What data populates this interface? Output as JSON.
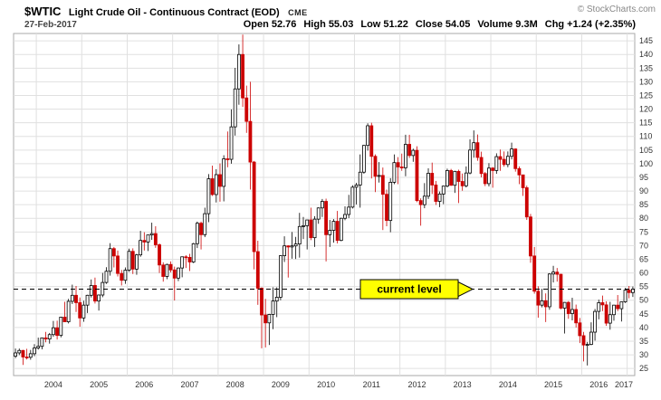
{
  "header": {
    "symbol": "$WTIC",
    "title": "Light Crude Oil - Continuous Contract (EOD)",
    "exchange": "CME",
    "copyright": "© StockCharts.com",
    "date": "27-Feb-2017"
  },
  "quote": {
    "items": [
      {
        "label": "Open",
        "value": "52.76"
      },
      {
        "label": "High",
        "value": "55.03"
      },
      {
        "label": "Low",
        "value": "51.22"
      },
      {
        "label": "Close",
        "value": "54.05"
      },
      {
        "label": "Volume",
        "value": "9.3M"
      },
      {
        "label": "Chg",
        "value": "+1.24 (+2.35%)"
      }
    ]
  },
  "chart_data": {
    "type": "candlestick",
    "interval": "monthly",
    "start_month": "2003-07",
    "title": "$WTIC Light Crude Oil - Continuous Contract (EOD) CME",
    "ylim": [
      22.4,
      147.7
    ],
    "y_ticks": [
      25,
      30,
      35,
      40,
      45,
      50,
      55,
      60,
      65,
      70,
      75,
      80,
      85,
      90,
      95,
      100,
      105,
      110,
      115,
      120,
      125,
      130,
      135,
      140,
      145
    ],
    "x_labels": [
      "2004",
      "2005",
      "2006",
      "2007",
      "2008",
      "2009",
      "2010",
      "2011",
      "2012",
      "2013",
      "2014",
      "2015",
      "2016",
      "2017"
    ],
    "current_level": 54.05,
    "annotation": "current level",
    "grid": true,
    "legend_position": "none",
    "colors": {
      "up_stroke": "#000000",
      "up_fill": "#ffffff",
      "down": "#cc0000",
      "grid": "#e0e0e0",
      "border": "#aaaaaa",
      "axis_text": "#333333",
      "dashed_line": "#000000",
      "annotation_bg": "#ffff00",
      "annotation_border": "#000000"
    },
    "ohlc": [
      [
        29.5,
        32.3,
        28.8,
        30.7
      ],
      [
        30.7,
        32.3,
        29.9,
        31.6
      ],
      [
        31.6,
        31.8,
        26.3,
        29.2
      ],
      [
        29.2,
        32.2,
        28.3,
        29.1
      ],
      [
        29.1,
        31.8,
        28.2,
        30.4
      ],
      [
        30.4,
        33.9,
        29.5,
        32.5
      ],
      [
        32.5,
        36.3,
        31.9,
        33.1
      ],
      [
        33.1,
        36.2,
        32.0,
        36.2
      ],
      [
        36.2,
        38.4,
        34.6,
        35.8
      ],
      [
        35.8,
        38.0,
        34.1,
        37.4
      ],
      [
        37.4,
        42.4,
        36.6,
        39.9
      ],
      [
        39.9,
        42.5,
        35.6,
        37.1
      ],
      [
        37.1,
        43.9,
        36.4,
        43.8
      ],
      [
        43.8,
        49.4,
        42.0,
        42.1
      ],
      [
        42.1,
        50.5,
        41.5,
        49.6
      ],
      [
        49.6,
        55.7,
        48.6,
        51.8
      ],
      [
        51.8,
        55.2,
        45.7,
        49.1
      ],
      [
        49.1,
        51.0,
        40.3,
        43.5
      ],
      [
        43.5,
        49.8,
        42.1,
        48.2
      ],
      [
        48.2,
        52.0,
        45.3,
        51.8
      ],
      [
        51.8,
        57.6,
        51.0,
        55.4
      ],
      [
        55.4,
        58.3,
        48.8,
        49.7
      ],
      [
        49.7,
        52.1,
        46.2,
        51.9
      ],
      [
        51.9,
        60.0,
        51.1,
        56.5
      ],
      [
        56.5,
        62.1,
        56.0,
        60.6
      ],
      [
        60.6,
        70.9,
        59.0,
        68.9
      ],
      [
        68.9,
        69.5,
        62.0,
        66.2
      ],
      [
        66.2,
        68.2,
        58.7,
        59.8
      ],
      [
        59.8,
        61.1,
        55.4,
        57.3
      ],
      [
        57.3,
        62.0,
        56.0,
        61.0
      ],
      [
        61.0,
        68.9,
        60.4,
        67.9
      ],
      [
        67.9,
        69.0,
        59.6,
        61.4
      ],
      [
        61.4,
        67.0,
        59.3,
        66.6
      ],
      [
        66.6,
        75.4,
        65.9,
        71.9
      ],
      [
        71.9,
        74.9,
        68.2,
        71.3
      ],
      [
        71.3,
        74.0,
        68.0,
        73.9
      ],
      [
        73.9,
        78.4,
        72.1,
        74.4
      ],
      [
        74.4,
        77.1,
        69.2,
        70.3
      ],
      [
        70.3,
        70.8,
        60.0,
        62.9
      ],
      [
        62.9,
        63.9,
        56.8,
        58.7
      ],
      [
        58.7,
        63.4,
        57.7,
        63.1
      ],
      [
        63.1,
        64.2,
        60.2,
        61.1
      ],
      [
        61.1,
        62.3,
        49.9,
        58.1
      ],
      [
        58.1,
        62.0,
        57.0,
        61.8
      ],
      [
        61.8,
        66.0,
        58.4,
        65.9
      ],
      [
        65.9,
        66.5,
        61.8,
        65.7
      ],
      [
        65.7,
        67.0,
        60.7,
        64.0
      ],
      [
        64.0,
        71.0,
        63.6,
        70.7
      ],
      [
        70.7,
        78.8,
        69.1,
        78.2
      ],
      [
        78.2,
        78.8,
        68.6,
        74.0
      ],
      [
        74.0,
        83.9,
        73.1,
        81.7
      ],
      [
        81.7,
        96.2,
        78.6,
        94.5
      ],
      [
        94.5,
        99.3,
        88.2,
        88.7
      ],
      [
        88.7,
        98.0,
        85.8,
        96.0
      ],
      [
        96.0,
        100.1,
        86.1,
        91.7
      ],
      [
        91.7,
        103.1,
        86.2,
        101.8
      ],
      [
        101.8,
        111.8,
        98.7,
        101.6
      ],
      [
        101.6,
        119.9,
        100.0,
        113.5
      ],
      [
        113.5,
        135.1,
        110.3,
        127.4
      ],
      [
        127.4,
        143.7,
        121.6,
        140.0
      ],
      [
        140.0,
        147.3,
        120.8,
        124.1
      ],
      [
        124.1,
        128.6,
        111.3,
        115.5
      ],
      [
        115.5,
        130.0,
        90.5,
        100.6
      ],
      [
        100.6,
        101.0,
        61.3,
        67.8
      ],
      [
        67.8,
        71.8,
        48.3,
        54.4
      ],
      [
        54.4,
        54.7,
        32.4,
        44.6
      ],
      [
        44.6,
        50.5,
        32.7,
        41.7
      ],
      [
        41.7,
        45.0,
        33.6,
        44.8
      ],
      [
        44.8,
        54.7,
        39.4,
        49.7
      ],
      [
        49.7,
        54.7,
        43.8,
        51.1
      ],
      [
        51.1,
        66.5,
        50.0,
        66.3
      ],
      [
        66.3,
        73.4,
        64.0,
        69.9
      ],
      [
        69.9,
        70.1,
        58.3,
        69.5
      ],
      [
        69.5,
        75.0,
        65.2,
        69.9
      ],
      [
        69.9,
        73.2,
        65.1,
        70.6
      ],
      [
        70.6,
        82.0,
        65.6,
        77.0
      ],
      [
        77.0,
        80.5,
        72.4,
        77.3
      ],
      [
        77.3,
        79.0,
        68.6,
        79.4
      ],
      [
        79.4,
        83.9,
        72.0,
        72.9
      ],
      [
        72.9,
        80.8,
        69.5,
        79.7
      ],
      [
        79.7,
        84.0,
        78.0,
        83.8
      ],
      [
        83.8,
        87.1,
        80.5,
        86.2
      ],
      [
        86.2,
        87.2,
        64.2,
        74.0
      ],
      [
        74.0,
        79.4,
        69.5,
        75.6
      ],
      [
        75.6,
        79.7,
        71.1,
        78.9
      ],
      [
        78.9,
        82.7,
        70.8,
        71.9
      ],
      [
        71.9,
        80.2,
        71.6,
        80.0
      ],
      [
        80.0,
        84.4,
        79.3,
        81.4
      ],
      [
        81.4,
        88.6,
        80.1,
        84.1
      ],
      [
        84.1,
        92.1,
        83.6,
        91.4
      ],
      [
        91.4,
        93.0,
        85.1,
        92.2
      ],
      [
        92.2,
        103.4,
        83.9,
        96.9
      ],
      [
        96.9,
        106.9,
        96.3,
        106.7
      ],
      [
        106.7,
        114.8,
        104.8,
        113.9
      ],
      [
        113.9,
        115.0,
        94.6,
        102.7
      ],
      [
        102.7,
        103.4,
        89.6,
        95.4
      ],
      [
        95.4,
        100.6,
        93.1,
        95.7
      ],
      [
        95.7,
        98.6,
        75.7,
        88.8
      ],
      [
        88.8,
        90.5,
        77.1,
        79.2
      ],
      [
        79.2,
        94.7,
        74.9,
        93.2
      ],
      [
        93.2,
        103.4,
        92.5,
        100.4
      ],
      [
        100.4,
        102.4,
        92.5,
        98.8
      ],
      [
        98.8,
        103.7,
        97.4,
        98.5
      ],
      [
        98.5,
        110.6,
        95.4,
        107.1
      ],
      [
        107.1,
        110.6,
        102.1,
        103.0
      ],
      [
        103.0,
        105.5,
        100.7,
        104.9
      ],
      [
        104.9,
        106.4,
        85.9,
        86.5
      ],
      [
        86.5,
        87.3,
        77.3,
        85.0
      ],
      [
        85.0,
        92.9,
        83.7,
        88.1
      ],
      [
        88.1,
        98.3,
        87.1,
        96.5
      ],
      [
        96.5,
        100.4,
        88.9,
        92.2
      ],
      [
        92.2,
        93.7,
        84.9,
        86.2
      ],
      [
        86.2,
        89.8,
        84.1,
        88.9
      ],
      [
        88.9,
        91.9,
        85.2,
        91.8
      ],
      [
        91.8,
        98.2,
        91.3,
        97.5
      ],
      [
        97.5,
        98.1,
        91.9,
        92.1
      ],
      [
        92.1,
        97.4,
        89.3,
        97.2
      ],
      [
        97.2,
        97.8,
        85.6,
        93.5
      ],
      [
        93.5,
        96.4,
        90.1,
        91.9
      ],
      [
        91.9,
        99.0,
        91.3,
        96.6
      ],
      [
        96.6,
        108.9,
        96.1,
        105.0
      ],
      [
        105.0,
        112.2,
        102.2,
        107.7
      ],
      [
        107.7,
        110.7,
        101.1,
        102.3
      ],
      [
        102.3,
        104.4,
        95.0,
        96.4
      ],
      [
        96.4,
        97.0,
        91.8,
        92.7
      ],
      [
        92.7,
        100.2,
        91.7,
        98.4
      ],
      [
        98.4,
        98.8,
        91.2,
        97.5
      ],
      [
        97.5,
        103.8,
        96.3,
        102.6
      ],
      [
        102.6,
        105.2,
        97.4,
        101.6
      ],
      [
        101.6,
        104.5,
        98.9,
        99.7
      ],
      [
        99.7,
        104.5,
        98.7,
        102.7
      ],
      [
        102.7,
        107.7,
        101.6,
        105.4
      ],
      [
        105.4,
        105.6,
        97.1,
        98.2
      ],
      [
        98.2,
        99.0,
        92.5,
        95.9
      ],
      [
        95.9,
        96.0,
        88.2,
        91.2
      ],
      [
        91.2,
        92.0,
        79.4,
        80.5
      ],
      [
        80.5,
        81.6,
        63.7,
        66.2
      ],
      [
        66.2,
        69.5,
        52.4,
        53.3
      ],
      [
        53.3,
        55.1,
        43.6,
        48.2
      ],
      [
        48.2,
        54.2,
        47.4,
        49.8
      ],
      [
        49.8,
        52.5,
        42.0,
        47.6
      ],
      [
        47.6,
        59.9,
        46.5,
        59.6
      ],
      [
        59.6,
        62.6,
        56.5,
        60.3
      ],
      [
        60.3,
        61.8,
        56.8,
        59.5
      ],
      [
        59.5,
        59.7,
        46.7,
        47.1
      ],
      [
        47.1,
        49.3,
        37.8,
        49.2
      ],
      [
        49.2,
        49.7,
        43.2,
        45.1
      ],
      [
        45.1,
        50.9,
        42.6,
        46.6
      ],
      [
        46.6,
        48.4,
        40.0,
        41.7
      ],
      [
        41.7,
        43.5,
        34.3,
        37.0
      ],
      [
        37.0,
        38.4,
        27.6,
        33.6
      ],
      [
        33.6,
        34.7,
        26.1,
        33.8
      ],
      [
        33.8,
        41.9,
        33.5,
        38.3
      ],
      [
        38.3,
        46.8,
        35.2,
        45.9
      ],
      [
        45.9,
        50.2,
        43.0,
        49.1
      ],
      [
        49.1,
        51.7,
        46.0,
        48.3
      ],
      [
        48.3,
        49.6,
        40.6,
        41.6
      ],
      [
        41.6,
        49.4,
        39.2,
        44.7
      ],
      [
        44.7,
        48.3,
        42.5,
        48.2
      ],
      [
        48.2,
        51.9,
        46.0,
        46.9
      ],
      [
        46.9,
        49.4,
        42.2,
        49.4
      ],
      [
        49.4,
        54.5,
        49.0,
        53.7
      ],
      [
        53.7,
        55.2,
        50.7,
        52.8
      ],
      [
        52.8,
        55.0,
        51.2,
        54.05
      ]
    ]
  }
}
